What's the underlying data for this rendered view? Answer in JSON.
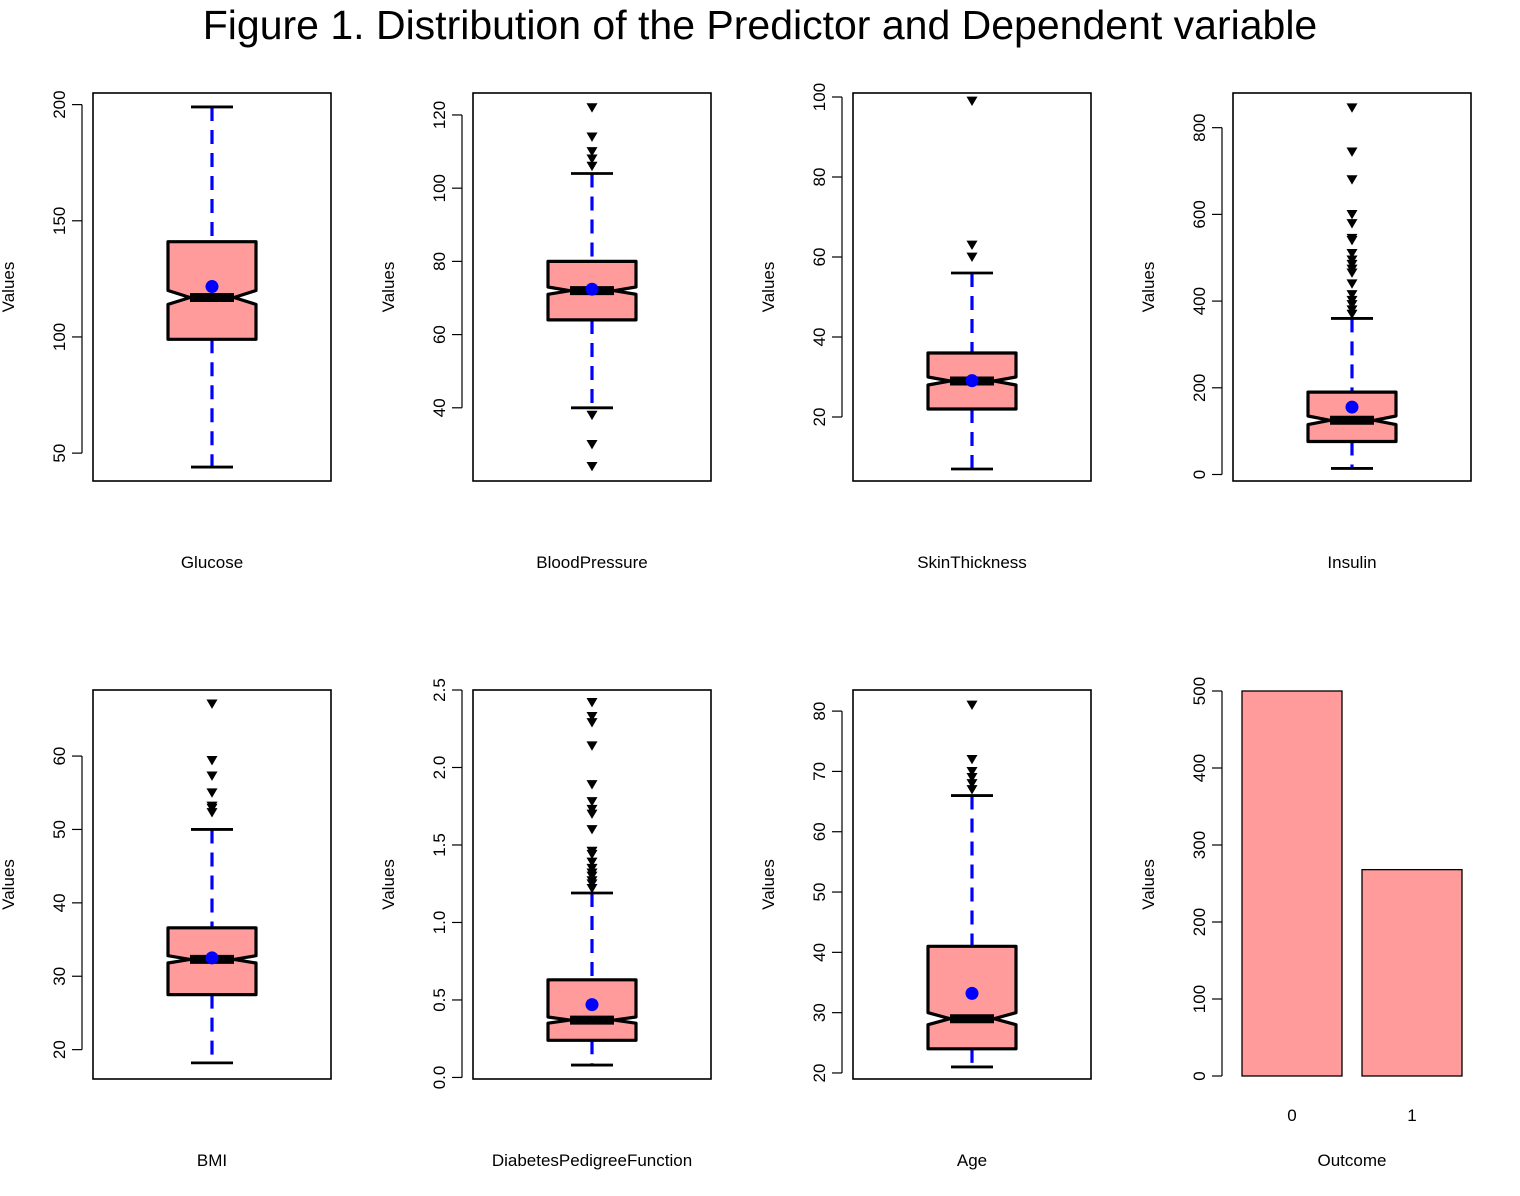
{
  "title": "Figure 1. Distribution of the Predictor and Dependent variable",
  "colors": {
    "box_fill": "#ff9b9b",
    "whisker": "#0000ff",
    "mean": "#0000ff",
    "outline": "#000000",
    "bar_fill": "#ff9b9b"
  },
  "chart_data": [
    {
      "type": "box",
      "xlabel": "Glucose",
      "ylabel": "Values",
      "ylim": [
        38,
        205
      ],
      "yticks": [
        50,
        100,
        150,
        200
      ],
      "q1": 99,
      "median": 117,
      "q3": 141,
      "notch_low": 114,
      "notch_high": 120,
      "whisker_low": 44,
      "whisker_high": 199,
      "mean": 121.7,
      "outliers": []
    },
    {
      "type": "box",
      "xlabel": "BloodPressure",
      "ylabel": "Values",
      "ylim": [
        20,
        126
      ],
      "yticks": [
        40,
        60,
        80,
        100,
        120
      ],
      "q1": 64,
      "median": 72,
      "q3": 80,
      "notch_low": 71,
      "notch_high": 73,
      "whisker_low": 40,
      "whisker_high": 104,
      "mean": 72.4,
      "outliers": [
        24,
        30,
        38,
        106,
        108,
        110,
        114,
        122
      ]
    },
    {
      "type": "box",
      "xlabel": "SkinThickness",
      "ylabel": "Values",
      "ylim": [
        4,
        101
      ],
      "yticks": [
        20,
        40,
        60,
        80,
        100
      ],
      "q1": 22,
      "median": 29,
      "q3": 36,
      "notch_low": 28,
      "notch_high": 30,
      "whisker_low": 7,
      "whisker_high": 56,
      "mean": 29.1,
      "outliers": [
        60,
        63,
        99
      ]
    },
    {
      "type": "box",
      "xlabel": "Insulin",
      "ylabel": "Values",
      "ylim": [
        -15,
        880
      ],
      "yticks": [
        0,
        200,
        400,
        600,
        800
      ],
      "q1": 76,
      "median": 125,
      "q3": 190,
      "notch_low": 115,
      "notch_high": 135,
      "whisker_low": 14,
      "whisker_high": 360,
      "mean": 155.5,
      "outliers": [
        370,
        380,
        392,
        402,
        415,
        440,
        465,
        474,
        485,
        495,
        510,
        540,
        545,
        579,
        600,
        680,
        744,
        846
      ]
    },
    {
      "type": "box",
      "xlabel": "BMI",
      "ylabel": "Values",
      "ylim": [
        16,
        69
      ],
      "yticks": [
        20,
        30,
        40,
        50,
        60
      ],
      "q1": 27.5,
      "median": 32.3,
      "q3": 36.6,
      "notch_low": 31.8,
      "notch_high": 32.8,
      "whisker_low": 18.2,
      "whisker_high": 50,
      "mean": 32.5,
      "outliers": [
        52.3,
        52.9,
        53.2,
        55,
        57.3,
        59.4,
        67.1
      ]
    },
    {
      "type": "box",
      "xlabel": "DiabetesPedigreeFunction",
      "ylabel": "Values",
      "ylim": [
        -0.01,
        2.5
      ],
      "yticks": [
        0.0,
        0.5,
        1.0,
        1.5,
        2.0,
        2.5
      ],
      "ytick_labels": [
        "0.0",
        "0.5",
        "1.0",
        "1.5",
        "2.0",
        "2.5"
      ],
      "q1": 0.24,
      "median": 0.37,
      "q3": 0.63,
      "notch_low": 0.35,
      "notch_high": 0.39,
      "whisker_low": 0.08,
      "whisker_high": 1.19,
      "mean": 0.47,
      "outliers": [
        1.22,
        1.25,
        1.27,
        1.3,
        1.32,
        1.35,
        1.39,
        1.44,
        1.46,
        1.6,
        1.7,
        1.73,
        1.78,
        1.89,
        2.14,
        2.29,
        2.33,
        2.42
      ]
    },
    {
      "type": "box",
      "xlabel": "Age",
      "ylabel": "Values",
      "ylim": [
        19,
        83.5
      ],
      "yticks": [
        20,
        30,
        40,
        50,
        60,
        70,
        80
      ],
      "q1": 24,
      "median": 29,
      "q3": 41,
      "notch_low": 28,
      "notch_high": 30,
      "whisker_low": 21,
      "whisker_high": 66,
      "mean": 33.2,
      "outliers": [
        67,
        68,
        69,
        70,
        72,
        81
      ]
    },
    {
      "type": "bar",
      "xlabel": "Outcome",
      "ylabel": "Values",
      "categories": [
        "0",
        "1"
      ],
      "values": [
        500,
        268
      ],
      "ylim": [
        0,
        500
      ],
      "yticks": [
        0,
        100,
        200,
        300,
        400,
        500
      ]
    }
  ]
}
